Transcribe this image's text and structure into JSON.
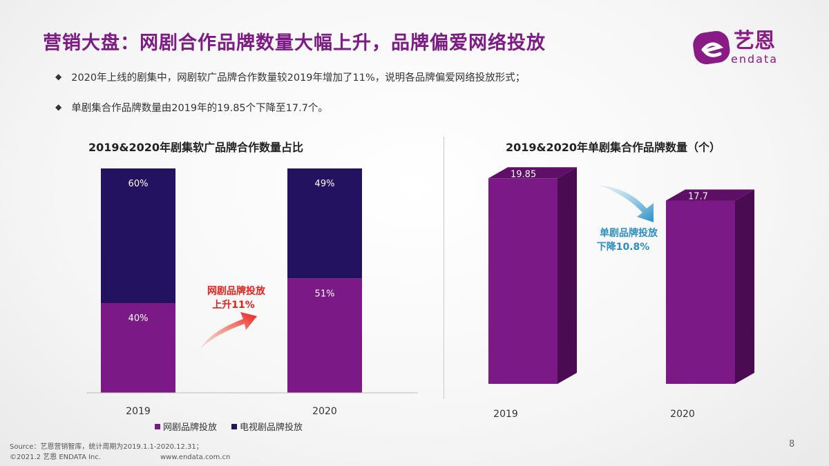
{
  "header": {
    "title": "营销大盘：网剧合作品牌数量大幅上升，品牌偏爱网络投放",
    "logo_cn": "艺恩",
    "logo_en": "endata"
  },
  "bullets": [
    "2020年上线的剧集中，网剧软广品牌合作数量较2019年增加了11%，说明各品牌偏爱网络投放形式；",
    "单剧集合作品牌数量由2019年的19.85个下降至17.7个。"
  ],
  "chart_data": [
    {
      "type": "bar",
      "stacked": true,
      "title": "2019&2020年剧集软广品牌合作数量占比",
      "categories": [
        "2019",
        "2020"
      ],
      "series": [
        {
          "name": "网剧品牌投放",
          "values": [
            40,
            51
          ],
          "labels": [
            "40%",
            "51%"
          ],
          "color": "#7b1a86"
        },
        {
          "name": "电视剧品牌投放",
          "values": [
            60,
            49
          ],
          "labels": [
            "60%",
            "49%"
          ],
          "color": "#231260"
        }
      ],
      "ylim": [
        0,
        100
      ],
      "legend_position": "bottom",
      "annotation": {
        "line1": "网剧品牌投放",
        "line2": "上升11%",
        "color": "#e8201b"
      }
    },
    {
      "type": "bar",
      "title": "2019&2020年单剧集合作品牌数量（个）",
      "categories": [
        "2019",
        "2020"
      ],
      "values": [
        19.85,
        17.7
      ],
      "labels": [
        "19.85",
        "17.7"
      ],
      "color": "#7b1a86",
      "annotation": {
        "line1": "单剧品牌投放",
        "line2": "下降10.8%",
        "color": "#2a8fc4"
      }
    }
  ],
  "footer": {
    "source": "Source：艺恩营销智库，统计周期为2019.1.1-2020.12.31；",
    "copyright": "©2021.2 艺恩 ENDATA Inc.",
    "website": "www.endata.com.cn",
    "page": "8"
  }
}
